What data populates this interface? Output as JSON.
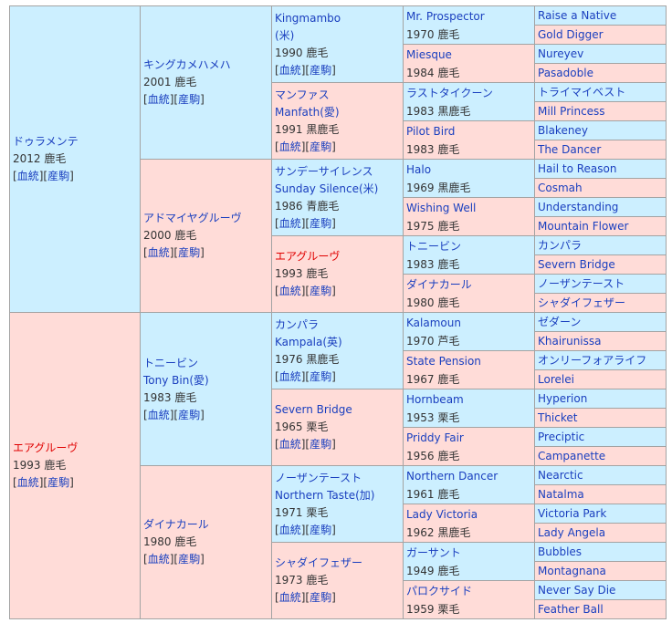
{
  "labels": {
    "pedigree_link": "血統",
    "progeny_link": "産駒"
  },
  "colors": {
    "sire_bg": "#ccefff",
    "dam_bg": "#ffdcd8",
    "link": "#1a3fbf",
    "highlight": "#e00000"
  },
  "generations": [
    [
      {
        "name": "ドゥラメンテ",
        "info": "2012 鹿毛",
        "links": true
      },
      {
        "name": "エアグルーヴ",
        "info": "1993 鹿毛",
        "links": true,
        "highlight": true
      }
    ],
    [
      {
        "name": "キングカメハメハ",
        "info": "2001 鹿毛",
        "links": true
      },
      {
        "name": "アドマイヤグルーヴ",
        "info": "2000 鹿毛",
        "links": true
      },
      {
        "name": "トニービン",
        "alt": "Tony Bin(愛)",
        "info": "1983 鹿毛",
        "links": true
      },
      {
        "name": "ダイナカール",
        "info": "1980 鹿毛",
        "links": true
      }
    ],
    [
      {
        "name": "Kingmambo",
        "alt": "(米)",
        "info": "1990 鹿毛",
        "links": true
      },
      {
        "name": "マンファス",
        "alt": "Manfath(愛)",
        "info": "1991 黒鹿毛",
        "links": true
      },
      {
        "name": "サンデーサイレンス",
        "alt": "Sunday Silence(米)",
        "info": "1986 青鹿毛",
        "links": true
      },
      {
        "name": "エアグルーヴ",
        "info": "1993 鹿毛",
        "links": true,
        "highlight": true
      },
      {
        "name": "カンパラ",
        "alt": "Kampala(英)",
        "info": "1976 黒鹿毛",
        "links": true
      },
      {
        "name": "Severn Bridge",
        "info": "1965 栗毛",
        "links": true
      },
      {
        "name": "ノーザンテースト",
        "alt": "Northern Taste(加)",
        "info": "1971 栗毛",
        "links": true
      },
      {
        "name": "シャダイフェザー",
        "info": "1973 鹿毛",
        "links": true
      }
    ],
    [
      {
        "name": "Mr. Prospector",
        "info": "1970 鹿毛"
      },
      {
        "name": "Miesque",
        "info": "1984 鹿毛"
      },
      {
        "name": "ラストタイクーン",
        "info": "1983 黒鹿毛"
      },
      {
        "name": "Pilot Bird",
        "info": "1983 鹿毛"
      },
      {
        "name": "Halo",
        "info": "1969 黒鹿毛"
      },
      {
        "name": "Wishing Well",
        "info": "1975 鹿毛"
      },
      {
        "name": "トニービン",
        "info": "1983 鹿毛"
      },
      {
        "name": "ダイナカール",
        "info": "1980 鹿毛"
      },
      {
        "name": "Kalamoun",
        "info": "1970 芦毛"
      },
      {
        "name": "State Pension",
        "info": "1967 鹿毛"
      },
      {
        "name": "Hornbeam",
        "info": "1953 栗毛"
      },
      {
        "name": "Priddy Fair",
        "info": "1956 鹿毛"
      },
      {
        "name": "Northern Dancer",
        "info": "1961 鹿毛"
      },
      {
        "name": "Lady Victoria",
        "info": "1962 黒鹿毛"
      },
      {
        "name": "ガーサント",
        "info": "1949 鹿毛"
      },
      {
        "name": "パロクサイド",
        "info": "1959 栗毛"
      }
    ],
    [
      {
        "name": "Raise a Native"
      },
      {
        "name": "Gold Digger"
      },
      {
        "name": "Nureyev"
      },
      {
        "name": "Pasadoble"
      },
      {
        "name": "トライマイベスト"
      },
      {
        "name": "Mill Princess"
      },
      {
        "name": "Blakeney"
      },
      {
        "name": "The Dancer"
      },
      {
        "name": "Hail to Reason"
      },
      {
        "name": "Cosmah"
      },
      {
        "name": "Understanding"
      },
      {
        "name": "Mountain Flower"
      },
      {
        "name": "カンパラ"
      },
      {
        "name": "Severn Bridge"
      },
      {
        "name": "ノーザンテースト"
      },
      {
        "name": "シャダイフェザー"
      },
      {
        "name": "ゼダーン"
      },
      {
        "name": "Khairunissa"
      },
      {
        "name": "オンリーフォアライフ"
      },
      {
        "name": "Lorelei"
      },
      {
        "name": "Hyperion"
      },
      {
        "name": "Thicket"
      },
      {
        "name": "Preciptic"
      },
      {
        "name": "Campanette"
      },
      {
        "name": "Nearctic"
      },
      {
        "name": "Natalma"
      },
      {
        "name": "Victoria Park"
      },
      {
        "name": "Lady Angela"
      },
      {
        "name": "Bubbles"
      },
      {
        "name": "Montagnana"
      },
      {
        "name": "Never Say Die"
      },
      {
        "name": "Feather Ball"
      }
    ]
  ]
}
